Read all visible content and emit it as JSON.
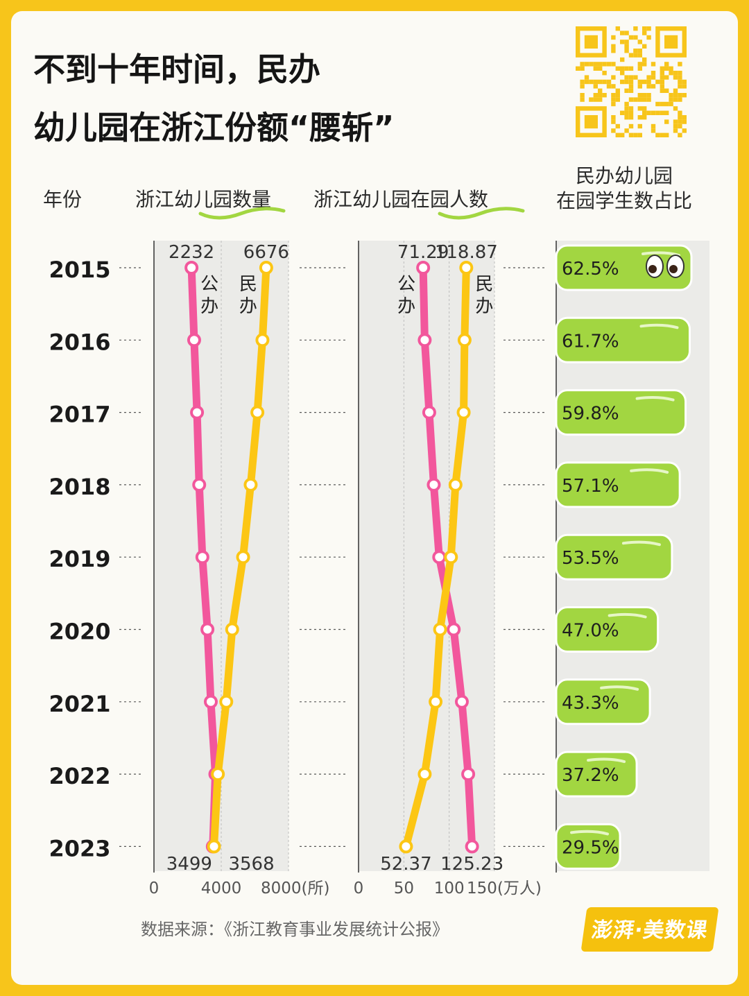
{
  "title": {
    "line1": "不到十年时间，民办",
    "line2": "幼儿园在浙江份额“腰斩”"
  },
  "headers": {
    "year": "年份",
    "count": "浙江幼儿园数量",
    "students": "浙江幼儿园在园人数",
    "share_line1": "民办幼儿园",
    "share_line2": "在园学生数占比"
  },
  "source": "数据来源：《浙江教育事业发展统计公报》",
  "logo": "澎湃·美数课",
  "colors": {
    "public": "#f2579c",
    "private": "#fcc614",
    "bar": "#a2d641",
    "bg": "#fbfaf5",
    "frame": "#f7c51b"
  },
  "chart_data": [
    {
      "type": "line",
      "title": "浙江幼儿园数量",
      "unit": "所",
      "categories": [
        "2015",
        "2016",
        "2017",
        "2018",
        "2019",
        "2020",
        "2021",
        "2022",
        "2023"
      ],
      "xlim": [
        0,
        8000
      ],
      "xticks": [
        "0",
        "4000",
        "8000(所)"
      ],
      "xtick_values": [
        0,
        4000,
        8000
      ],
      "series": [
        {
          "name": "公办",
          "values": [
            2232,
            2390,
            2560,
            2690,
            2880,
            3180,
            3380,
            3650,
            3499
          ]
        },
        {
          "name": "民办",
          "values": [
            6676,
            6450,
            6150,
            5750,
            5300,
            4650,
            4300,
            3800,
            3568
          ]
        }
      ],
      "labels": {
        "public_top": "2232",
        "private_top": "6676",
        "public_bottom": "3499",
        "private_bottom": "3568"
      },
      "series_labels": {
        "public": [
          "公",
          "办"
        ],
        "private": [
          "民",
          "办"
        ]
      }
    },
    {
      "type": "line",
      "title": "浙江幼儿园在园人数",
      "unit": "万人",
      "categories": [
        "2015",
        "2016",
        "2017",
        "2018",
        "2019",
        "2020",
        "2021",
        "2022",
        "2023"
      ],
      "xlim": [
        0,
        150
      ],
      "xticks": [
        "0",
        "50",
        "100",
        "150(万人)"
      ],
      "xtick_values": [
        0,
        50,
        100,
        150
      ],
      "series": [
        {
          "name": "公办",
          "values": [
            71.29,
            73,
            78,
            83,
            89,
            105,
            114,
            121,
            125.23
          ]
        },
        {
          "name": "民办",
          "values": [
            118.87,
            117,
            116,
            107,
            102,
            90,
            85,
            73,
            52.37
          ]
        }
      ],
      "labels": {
        "public_top": "71.29",
        "private_top": "118.87",
        "public_bottom": "125.23",
        "private_bottom": "52.37"
      },
      "series_labels": {
        "public": [
          "公",
          "办"
        ],
        "private": [
          "民",
          "办"
        ]
      }
    },
    {
      "type": "bar",
      "title": "民办幼儿园在园学生数占比",
      "categories": [
        "2015",
        "2016",
        "2017",
        "2018",
        "2019",
        "2020",
        "2021",
        "2022",
        "2023"
      ],
      "values": [
        62.5,
        61.7,
        59.8,
        57.1,
        53.5,
        47.0,
        43.3,
        37.2,
        29.5
      ],
      "value_labels": [
        "62.5%",
        "61.7%",
        "59.8%",
        "57.1%",
        "53.5%",
        "47.0%",
        "43.3%",
        "37.2%",
        "29.5%"
      ]
    }
  ]
}
